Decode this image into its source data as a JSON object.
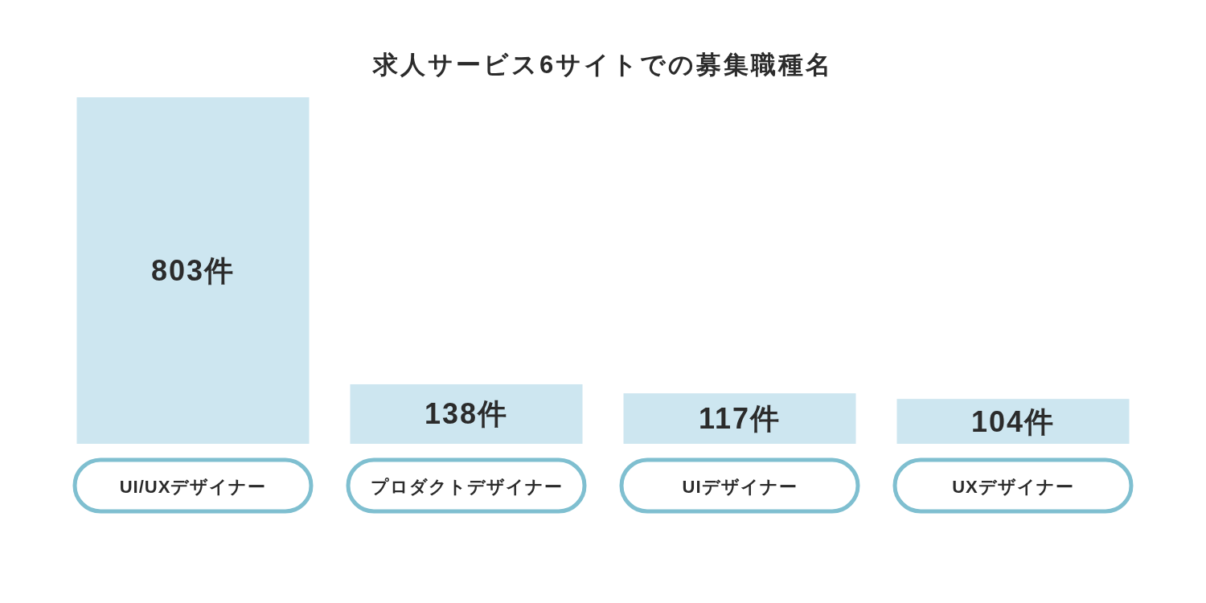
{
  "chart_data": {
    "type": "bar",
    "title": "求人サービス6サイトでの募集職種名",
    "categories": [
      "UI/UXデザイナー",
      "プロダクトデザイナー",
      "UIデザイナー",
      "UXデザイナー"
    ],
    "values": [
      803,
      138,
      117,
      104
    ],
    "value_labels": [
      "803件",
      "138件",
      "117件",
      "104件"
    ],
    "color": "#cde6f0"
  }
}
